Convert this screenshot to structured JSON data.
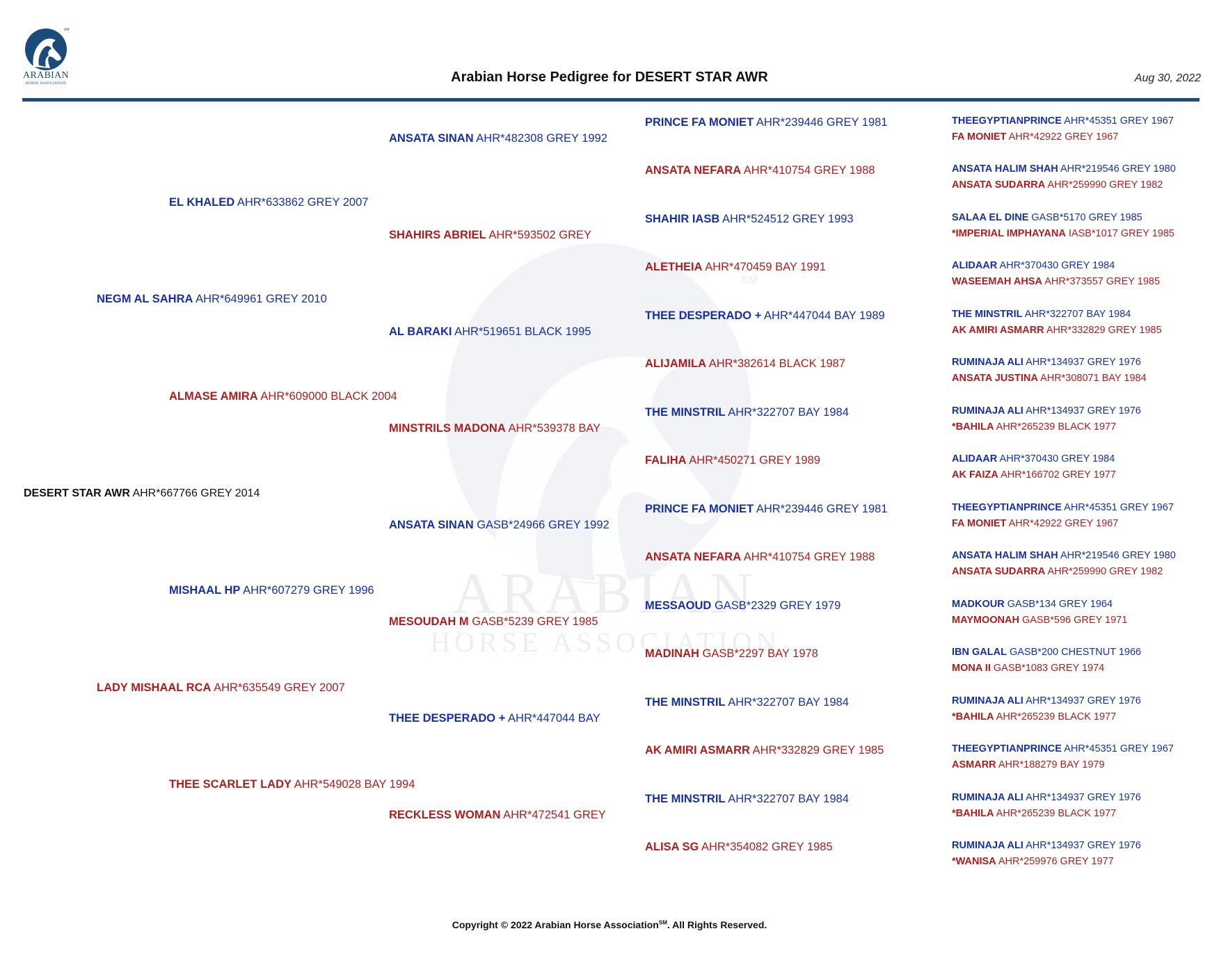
{
  "header": {
    "logo_text": "ARABIAN",
    "logo_subtext": "HORSE ASSOCIATION",
    "logo_mark": "SM",
    "title": "Arabian Horse Pedigree for DESERT STAR AWR",
    "date": "Aug 30, 2022"
  },
  "watermark": {
    "line1": "ARABIAN",
    "line2": "HORSE ASSOCIATION",
    "mark": "SM"
  },
  "colors": {
    "sire": "#1530a6",
    "dam": "#ae1d1d",
    "subject": "#111111",
    "rule": "#1c4c7d"
  },
  "pedigree": {
    "subject": {
      "name": "DESERT STAR AWR",
      "details": "AHR*667766 GREY 2014"
    },
    "gen1": [
      {
        "name": "NEGM AL SAHRA",
        "details": "AHR*649961 GREY 2010"
      },
      {
        "name": "LADY MISHAAL RCA",
        "details": "AHR*635549 GREY 2007"
      }
    ],
    "gen2": [
      {
        "name": "EL KHALED",
        "details": "AHR*633862 GREY 2007"
      },
      {
        "name": "ALMASE AMIRA",
        "details": "AHR*609000 BLACK 2004"
      },
      {
        "name": "MISHAAL HP",
        "details": "AHR*607279 GREY 1996"
      },
      {
        "name": "THEE SCARLET LADY",
        "details": "AHR*549028 BAY 1994"
      }
    ],
    "gen3": [
      {
        "name": "ANSATA SINAN",
        "details": "AHR*482308 GREY 1992"
      },
      {
        "name": "SHAHIRS ABRIEL",
        "details": "AHR*593502 GREY"
      },
      {
        "name": "AL BARAKI",
        "details": "AHR*519651 BLACK 1995"
      },
      {
        "name": "MINSTRILS MADONA",
        "details": "AHR*539378 BAY"
      },
      {
        "name": "ANSATA SINAN",
        "details": "GASB*24966 GREY 1992"
      },
      {
        "name": "MESOUDAH M",
        "details": "GASB*5239 GREY 1985"
      },
      {
        "name": "THEE DESPERADO +",
        "details": "AHR*447044 BAY"
      },
      {
        "name": "RECKLESS WOMAN",
        "details": "AHR*472541 GREY"
      }
    ],
    "gen4": [
      {
        "name": "PRINCE FA MONIET",
        "details": "AHR*239446 GREY 1981"
      },
      {
        "name": "ANSATA NEFARA",
        "details": "AHR*410754 GREY 1988"
      },
      {
        "name": "SHAHIR IASB",
        "details": "AHR*524512 GREY 1993"
      },
      {
        "name": "ALETHEIA",
        "details": "AHR*470459 BAY 1991"
      },
      {
        "name": "THEE DESPERADO +",
        "details": "AHR*447044 BAY 1989"
      },
      {
        "name": "ALIJAMILA",
        "details": "AHR*382614 BLACK 1987"
      },
      {
        "name": "THE MINSTRIL",
        "details": "AHR*322707 BAY 1984"
      },
      {
        "name": "FALIHA",
        "details": "AHR*450271 GREY 1989"
      },
      {
        "name": "PRINCE FA MONIET",
        "details": "AHR*239446 GREY 1981"
      },
      {
        "name": "ANSATA NEFARA",
        "details": "AHR*410754 GREY 1988"
      },
      {
        "name": "MESSAOUD",
        "details": "GASB*2329 GREY 1979"
      },
      {
        "name": "MADINAH",
        "details": "GASB*2297 BAY 1978"
      },
      {
        "name": "THE MINSTRIL",
        "details": "AHR*322707 BAY 1984"
      },
      {
        "name": "AK AMIRI ASMARR",
        "details": "AHR*332829 GREY 1985"
      },
      {
        "name": "THE MINSTRIL",
        "details": "AHR*322707 BAY 1984"
      },
      {
        "name": "ALISA SG",
        "details": "AHR*354082 GREY 1985"
      }
    ],
    "gen5": [
      {
        "name": "THEEGYPTIANPRINCE",
        "details": "AHR*45351 GREY 1967"
      },
      {
        "name": "FA MONIET",
        "details": "AHR*42922 GREY 1967"
      },
      {
        "name": "ANSATA HALIM SHAH",
        "details": "AHR*219546 GREY 1980"
      },
      {
        "name": "ANSATA SUDARRA",
        "details": "AHR*259990 GREY 1982"
      },
      {
        "name": "SALAA EL DINE",
        "details": "GASB*5170 GREY 1985"
      },
      {
        "name": "*IMPERIAL IMPHAYANA",
        "details": "IASB*1017 GREY 1985"
      },
      {
        "name": "ALIDAAR",
        "details": "AHR*370430 GREY 1984"
      },
      {
        "name": "WASEEMAH AHSA",
        "details": "AHR*373557 GREY 1985"
      },
      {
        "name": "THE MINSTRIL",
        "details": "AHR*322707 BAY 1984"
      },
      {
        "name": "AK AMIRI ASMARR",
        "details": "AHR*332829 GREY 1985"
      },
      {
        "name": "RUMINAJA ALI",
        "details": "AHR*134937 GREY 1976"
      },
      {
        "name": "ANSATA JUSTINA",
        "details": "AHR*308071 BAY 1984"
      },
      {
        "name": "RUMINAJA ALI",
        "details": "AHR*134937 GREY 1976"
      },
      {
        "name": "*BAHILA",
        "details": "AHR*265239 BLACK 1977"
      },
      {
        "name": "ALIDAAR",
        "details": "AHR*370430 GREY 1984"
      },
      {
        "name": "AK FAIZA",
        "details": "AHR*166702 GREY 1977"
      },
      {
        "name": "THEEGYPTIANPRINCE",
        "details": "AHR*45351 GREY 1967"
      },
      {
        "name": "FA MONIET",
        "details": "AHR*42922 GREY 1967"
      },
      {
        "name": "ANSATA HALIM SHAH",
        "details": "AHR*219546 GREY 1980"
      },
      {
        "name": "ANSATA SUDARRA",
        "details": "AHR*259990 GREY 1982"
      },
      {
        "name": "MADKOUR",
        "details": "GASB*134 GREY 1964"
      },
      {
        "name": "MAYMOONAH",
        "details": "GASB*596 GREY 1971"
      },
      {
        "name": "IBN GALAL",
        "details": "GASB*200 CHESTNUT 1966"
      },
      {
        "name": "MONA II",
        "details": "GASB*1083 GREY 1974"
      },
      {
        "name": "RUMINAJA ALI",
        "details": "AHR*134937 GREY 1976"
      },
      {
        "name": "*BAHILA",
        "details": "AHR*265239 BLACK 1977"
      },
      {
        "name": "THEEGYPTIANPRINCE",
        "details": "AHR*45351 GREY 1967"
      },
      {
        "name": "ASMARR",
        "details": "AHR*188279 BAY 1979"
      },
      {
        "name": "RUMINAJA ALI",
        "details": "AHR*134937 GREY 1976"
      },
      {
        "name": "*BAHILA",
        "details": "AHR*265239 BLACK 1977"
      },
      {
        "name": "RUMINAJA ALI",
        "details": "AHR*134937 GREY 1976"
      },
      {
        "name": "*WANISA",
        "details": "AHR*259976 GREY 1977"
      }
    ]
  },
  "footer": {
    "copyright_prefix": "Copyright © 2022 Arabian Horse Association",
    "copyright_mark": "SM",
    "copyright_suffix": ".  All Rights Reserved."
  }
}
